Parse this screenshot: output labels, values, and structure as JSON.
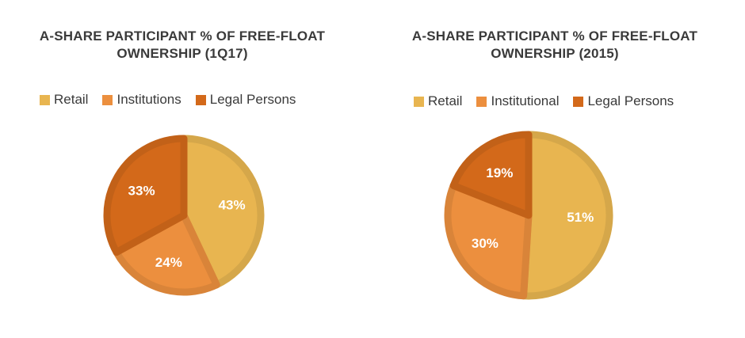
{
  "chart_data": [
    {
      "type": "pie",
      "title_line1": "A-SHARE PARTICIPANT % OF FREE-FLOAT",
      "title_line2": "OWNERSHIP (1Q17)",
      "categories": [
        "Retail",
        "Institutions",
        "Legal Persons"
      ],
      "values": [
        43,
        24,
        33
      ],
      "labels": [
        "43%",
        "24%",
        "33%"
      ],
      "colors": [
        "#E8B550",
        "#EC8F3E",
        "#D3691A"
      ],
      "legend_position": "top"
    },
    {
      "type": "pie",
      "title_line1": "A-SHARE PARTICIPANT % OF FREE-FLOAT",
      "title_line2": "OWNERSHIP (2015)",
      "categories": [
        "Retail",
        "Institutional",
        "Legal Persons"
      ],
      "values": [
        51,
        30,
        19
      ],
      "labels": [
        "51%",
        "30%",
        "19%"
      ],
      "colors": [
        "#E8B550",
        "#EC8F3E",
        "#D3691A"
      ],
      "legend_position": "top"
    }
  ]
}
